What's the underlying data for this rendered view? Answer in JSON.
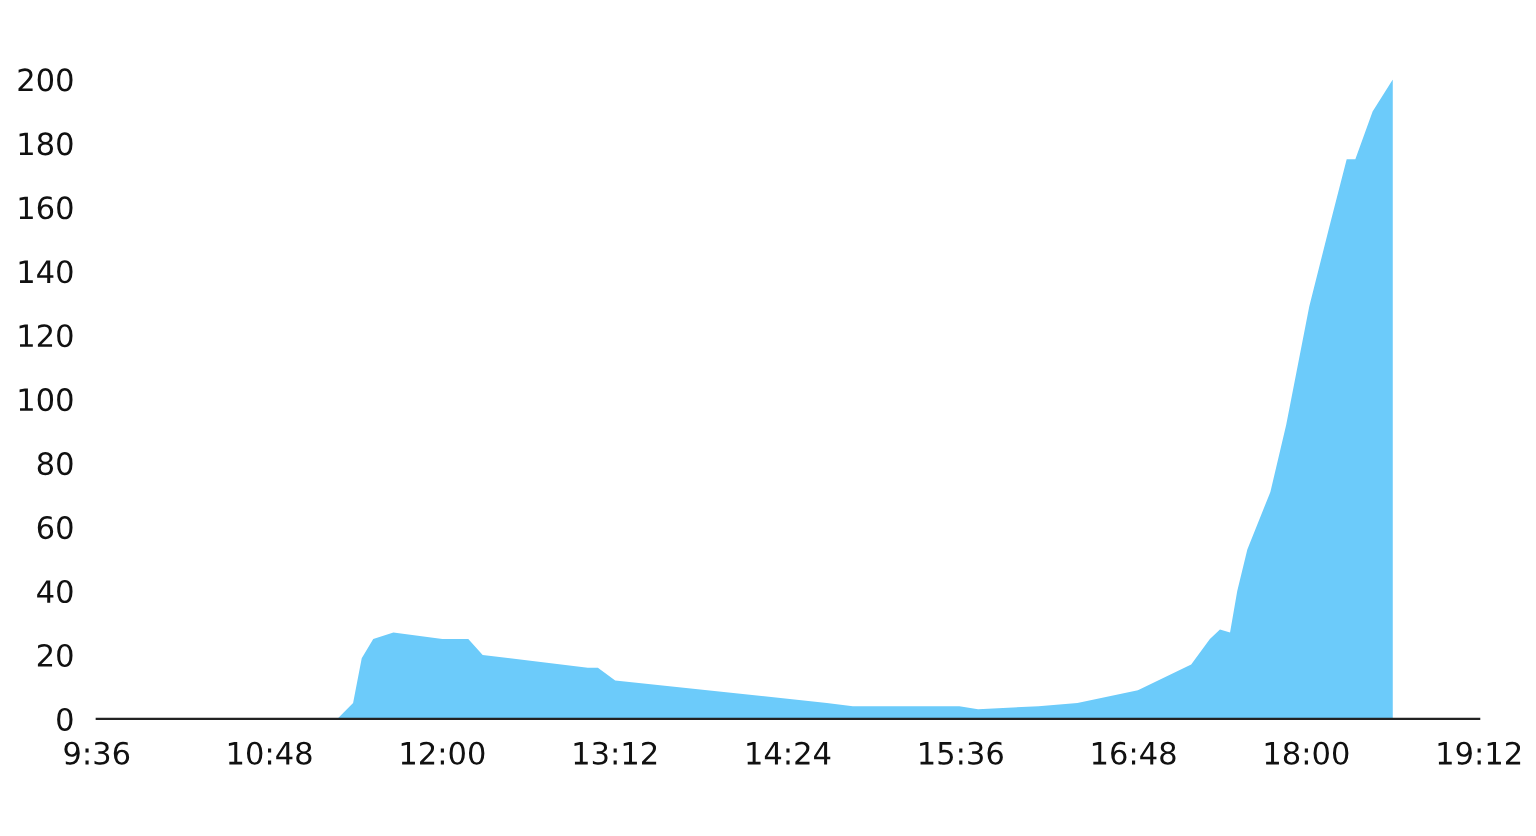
{
  "chart_data": {
    "type": "area",
    "color": "#6ccbfa",
    "x": [
      11.27,
      11.38,
      11.44,
      11.52,
      11.66,
      12.0,
      12.18,
      12.28,
      13.01,
      13.08,
      13.2,
      14.67,
      14.85,
      15.59,
      15.72,
      16.14,
      16.41,
      16.83,
      17.2,
      17.33,
      17.4,
      17.47,
      17.52,
      17.59,
      17.75,
      17.86,
      18.02,
      18.16,
      18.28,
      18.34,
      18.46,
      18.6,
      18.6
    ],
    "values": [
      0,
      5,
      19,
      25,
      27,
      25,
      25,
      20,
      16,
      16,
      12,
      5,
      4,
      4,
      3,
      4,
      5,
      9,
      17,
      25,
      28,
      27,
      40,
      53,
      71,
      92,
      129,
      154,
      175,
      175,
      190,
      200,
      0
    ],
    "xlim": [
      9.6,
      19.2
    ],
    "xticks": [
      {
        "value": 9.6,
        "label": "9:36"
      },
      {
        "value": 10.8,
        "label": "10:48"
      },
      {
        "value": 12.0,
        "label": "12:00"
      },
      {
        "value": 13.2,
        "label": "13:12"
      },
      {
        "value": 14.4,
        "label": "14:24"
      },
      {
        "value": 15.6,
        "label": "15:36"
      },
      {
        "value": 16.8,
        "label": "16:48"
      },
      {
        "value": 18.0,
        "label": "18:00"
      },
      {
        "value": 19.2,
        "label": "19:12"
      }
    ],
    "ylim": [
      0,
      200
    ],
    "yticks": [
      0,
      20,
      40,
      60,
      80,
      100,
      120,
      140,
      160,
      180,
      200
    ],
    "grid": false
  }
}
